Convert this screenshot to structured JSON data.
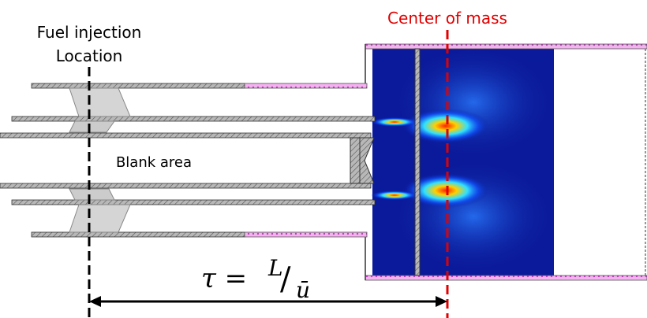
{
  "labels": {
    "fuel_injection": [
      "Fuel injection",
      "Location"
    ],
    "center_of_mass": "Center of mass",
    "blank_area": "Blank area"
  },
  "formula": {
    "lhs": "τ =",
    "numerator": "L",
    "slash": "/",
    "denominator": "ū"
  }
}
